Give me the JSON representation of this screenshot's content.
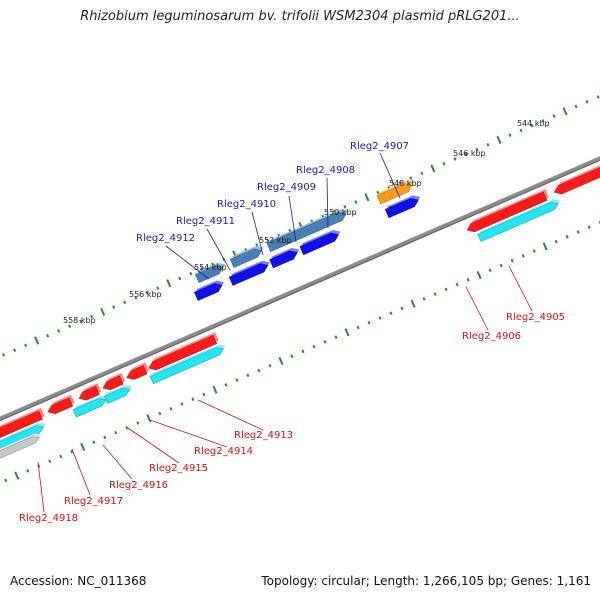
{
  "title": "Rhizobium leguminosarum bv. trifolii WSM2304 plasmid pRLG201...",
  "footer": {
    "accession": "Accession: NC_011368",
    "summary": "Topology: circular; Length: 1,266,105 bp; Genes: 1,161"
  },
  "colors": {
    "backbone": "#7f7f7f",
    "tick": "#2a8a2a",
    "label_top": "#1a1aa8",
    "label_bottom": "#c81414",
    "red": "#ff1a1a",
    "cyan": "#22e6f0",
    "blue": "#1010ee",
    "steel": "#4a7fb5",
    "orange": "#ff9a1a",
    "green": "#2fbf2f",
    "gray": "#c8c8c8"
  },
  "kbp_labels": [
    "544 kbp",
    "546 kbp",
    "548 kbp",
    "550 kbp",
    "552 kbp",
    "554 kbp",
    "556 kbp",
    "558 kbp"
  ],
  "top_labels": [
    "Rleg2_4907",
    "Rleg2_4908",
    "Rleg2_4909",
    "Rleg2_4910",
    "Rleg2_4911",
    "Rleg2_4912"
  ],
  "bottom_labels": [
    "Rleg2_4905",
    "Rleg2_4906",
    "Rleg2_4913",
    "Rleg2_4914",
    "Rleg2_4915",
    "Rleg2_4916",
    "Rleg2_4917",
    "Rleg2_4918"
  ]
}
